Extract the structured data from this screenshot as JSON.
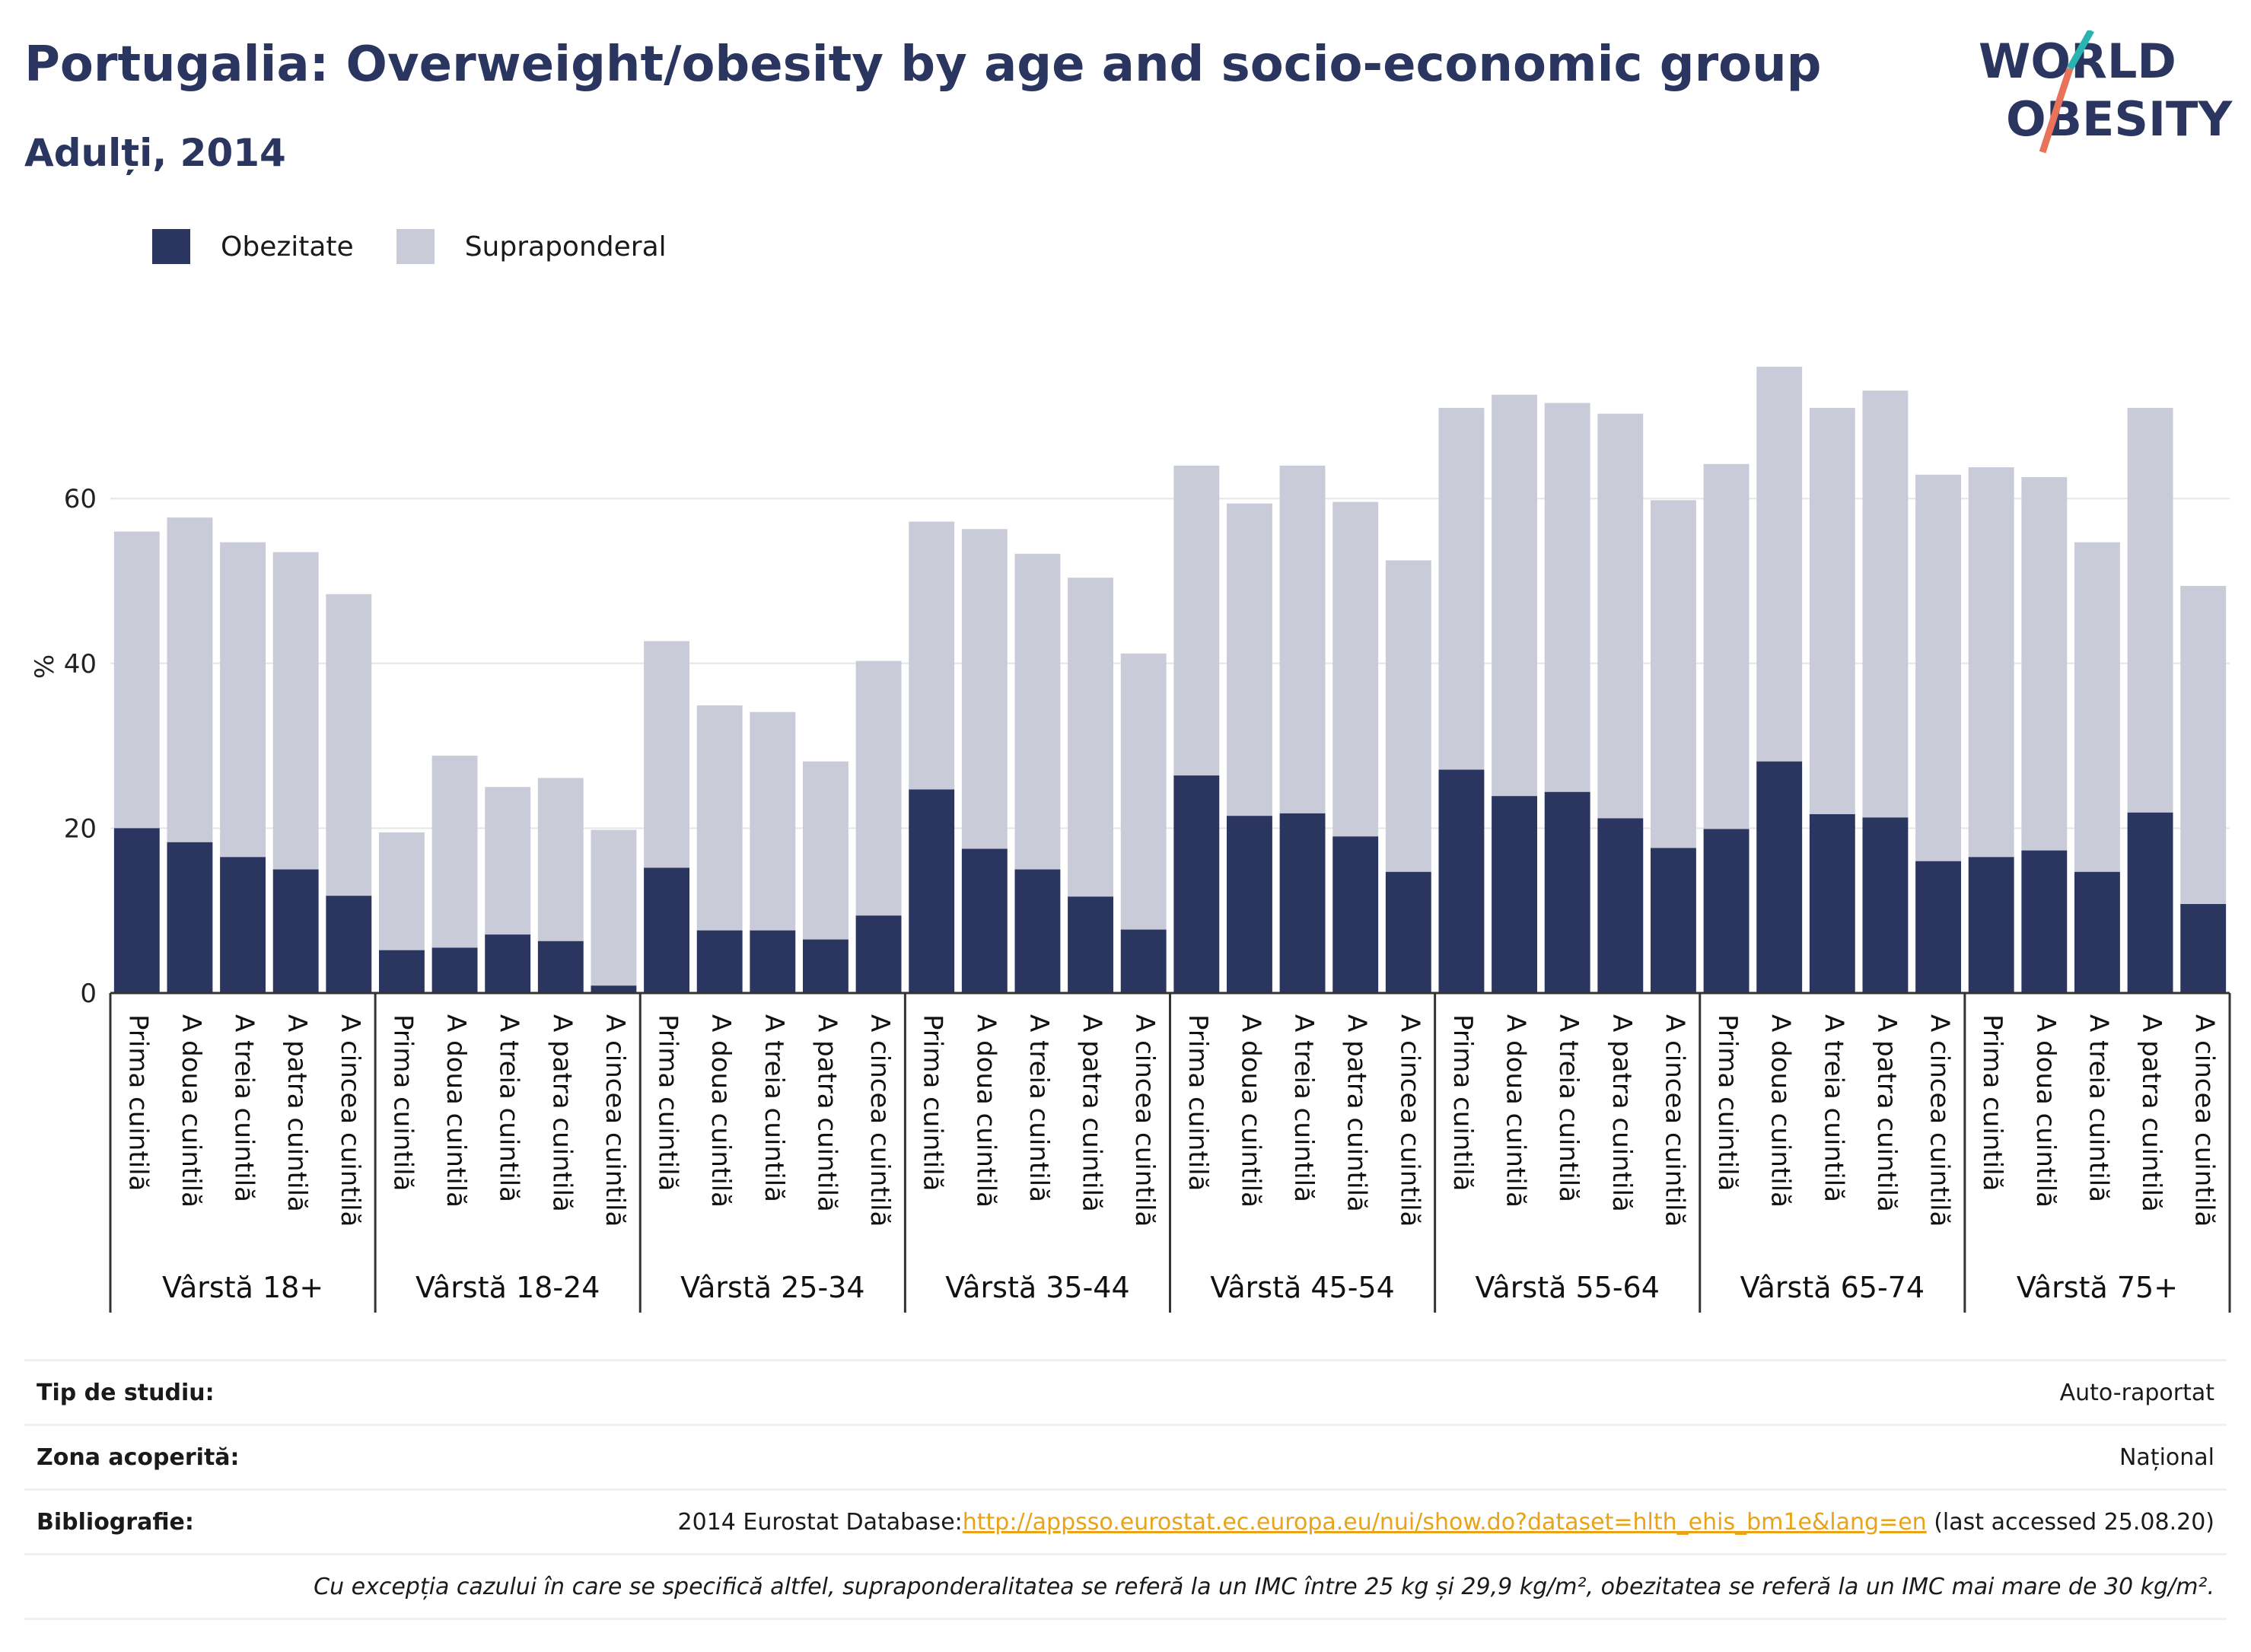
{
  "header": {
    "title": "Portugalia: Overweight/obesity by age and socio-economic group",
    "subtitle": "Adulți, 2014"
  },
  "logo": {
    "line1": "WORLD",
    "line2": "OBESITY"
  },
  "colors": {
    "obesity": "#2a3560",
    "overweight": "#c9cbd8",
    "grid": "#e6e6e6",
    "axis": "#333333",
    "accent_teal": "#2bb3b1",
    "accent_coral": "#e8735a",
    "link": "#e8a317"
  },
  "chart_data": {
    "type": "bar",
    "stacked": true,
    "ylabel": "%",
    "ylim": [
      0,
      80
    ],
    "yticks": [
      0,
      20,
      40,
      60
    ],
    "grid": true,
    "legend_position": "top-left",
    "quintiles": [
      "Prima cuintilă",
      "A doua cuintilă",
      "A treia cuintilă",
      "A patra cuintilă",
      "A cincea cuintilă"
    ],
    "groups": [
      "Vârstă 18+",
      "Vârstă 18-24",
      "Vârstă 25-34",
      "Vârstă 35-44",
      "Vârstă 45-54",
      "Vârstă 55-64",
      "Vârstă 65-74",
      "Vârstă 75+"
    ],
    "series": [
      {
        "name": "Obezitate",
        "values": [
          20.0,
          18.3,
          16.5,
          15.0,
          11.8,
          5.2,
          5.5,
          7.1,
          6.3,
          0.9,
          15.2,
          7.6,
          7.6,
          6.5,
          9.4,
          24.7,
          17.5,
          15.0,
          11.7,
          7.7,
          26.4,
          21.5,
          21.8,
          19.0,
          14.7,
          27.1,
          23.9,
          24.4,
          21.2,
          17.6,
          19.9,
          28.1,
          21.7,
          21.3,
          16.0,
          16.5,
          17.3,
          14.7,
          21.9,
          10.8
        ]
      },
      {
        "name": "Supraponderal",
        "values": [
          36.0,
          39.4,
          38.2,
          38.5,
          36.6,
          14.3,
          23.3,
          17.9,
          19.8,
          18.9,
          27.5,
          27.3,
          26.5,
          21.6,
          30.9,
          32.5,
          38.8,
          38.3,
          38.7,
          33.5,
          37.6,
          37.9,
          42.2,
          40.6,
          37.8,
          43.9,
          48.7,
          47.2,
          49.1,
          42.2,
          44.3,
          47.9,
          49.3,
          51.8,
          46.9,
          47.3,
          45.3,
          40.0,
          49.1,
          38.6
        ]
      }
    ]
  },
  "footer": {
    "rows": [
      {
        "label": "Tip de studiu:",
        "value": "Auto-raportat"
      },
      {
        "label": "Zona acoperită:",
        "value": "Național"
      }
    ],
    "bibliography": {
      "label": "Bibliografie:",
      "prefix": "2014 Eurostat Database:",
      "link": "http://appsso.eurostat.ec.europa.eu/nui/show.do?dataset=hlth_ehis_bm1e&lang=en",
      "suffix": " (last accessed 25.08.20)"
    },
    "note": "Cu excepția cazului în care se specifică altfel, supraponderalitatea se referă la un IMC între 25 kg și 29,9 kg/m², obezitatea se referă la un IMC mai mare de 30 kg/m²."
  }
}
